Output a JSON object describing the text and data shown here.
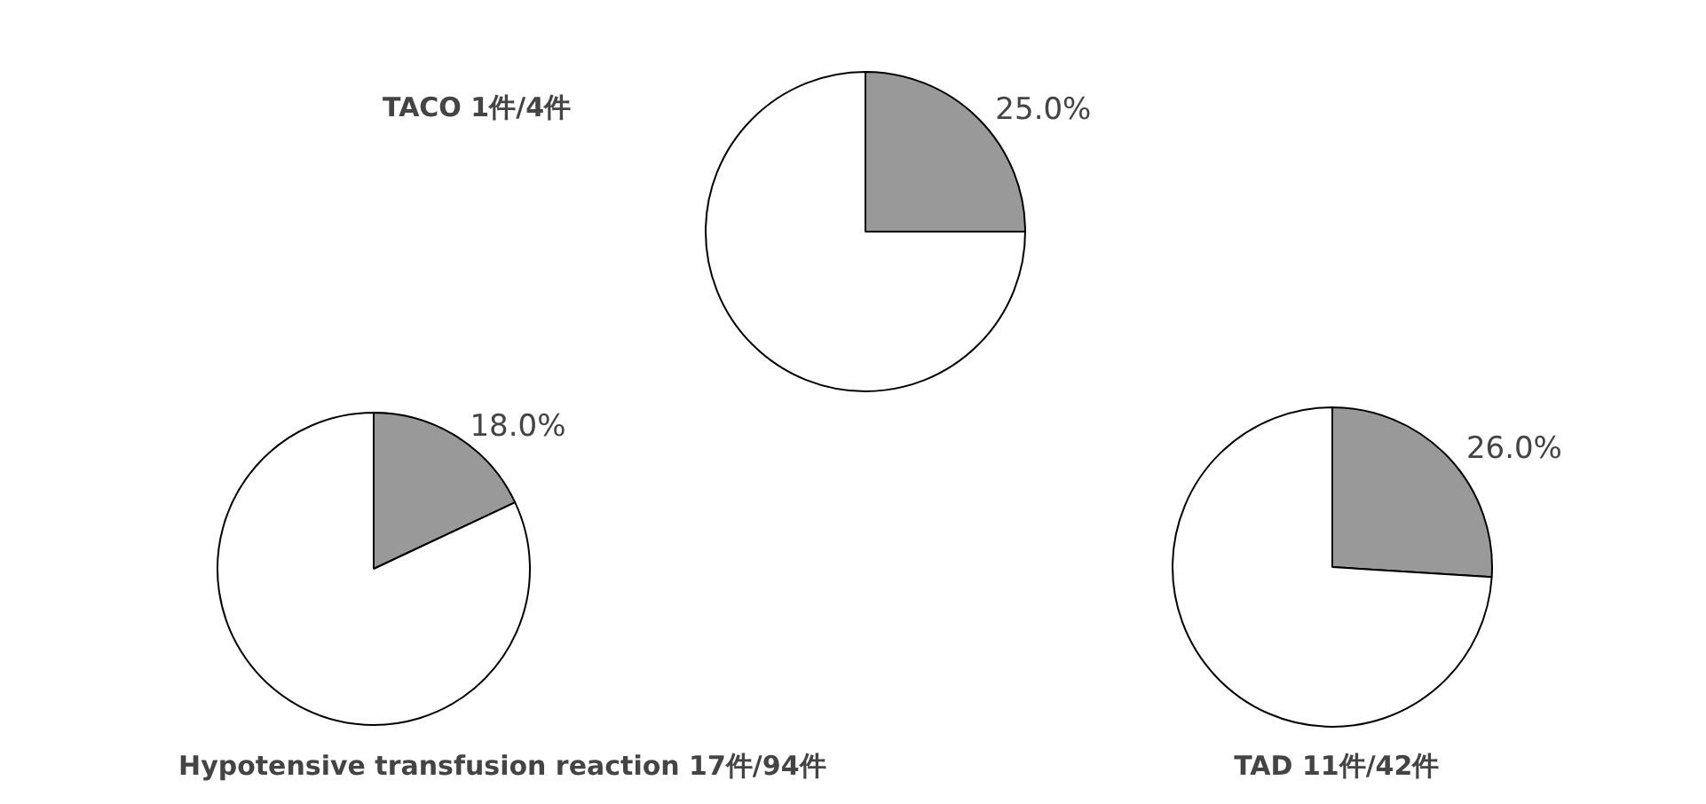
{
  "chart_data": [
    {
      "type": "pie",
      "title": "TACO  1件/4件",
      "categories": [
        null,
        null
      ],
      "values": [
        25,
        75
      ],
      "colors": [
        "#999999",
        "#ffffff"
      ],
      "value_labels": [
        "25.0%",
        null
      ]
    },
    {
      "type": "pie",
      "title": "Hypotensive transfusion reaction  17件/94件",
      "categories": [
        null,
        null
      ],
      "values": [
        18,
        82
      ],
      "colors": [
        "#999999",
        "#ffffff"
      ],
      "value_labels": [
        "18.0%",
        null
      ]
    },
    {
      "type": "pie",
      "title": "TAD  11件/42件",
      "categories": [
        null,
        null
      ],
      "values": [
        26,
        74
      ],
      "colors": [
        "#999999",
        "#ffffff"
      ],
      "value_labels": [
        "26.0%",
        null
      ]
    }
  ]
}
